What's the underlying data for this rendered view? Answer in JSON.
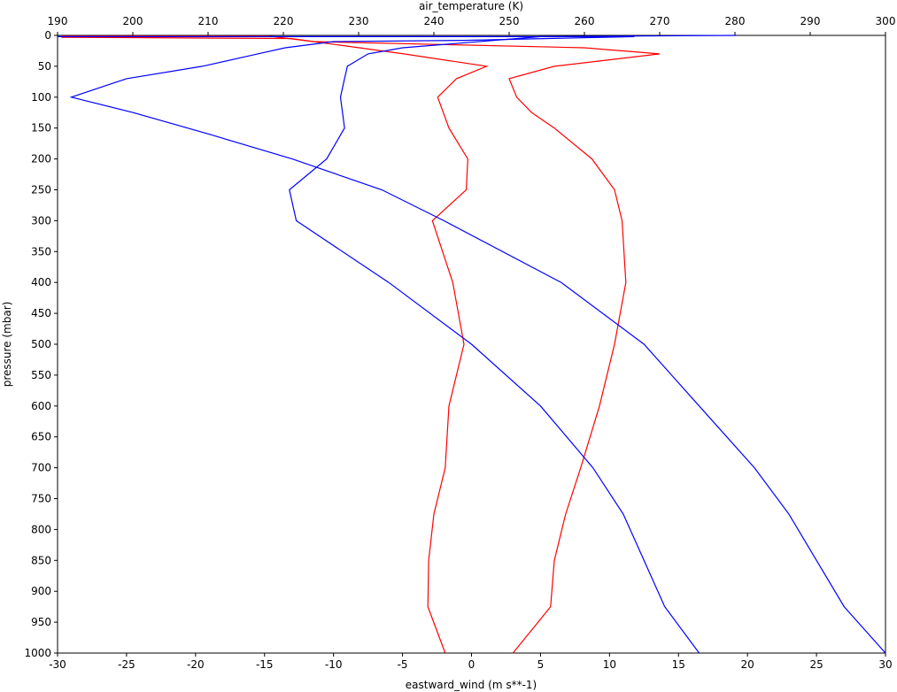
{
  "chart_data": {
    "type": "line",
    "title": "",
    "top_axis": {
      "label": "air_temperature (K)",
      "range": [
        190,
        300
      ],
      "ticks": [
        "190",
        "200",
        "210",
        "220",
        "230",
        "240",
        "250",
        "260",
        "270",
        "280",
        "290",
        "300"
      ]
    },
    "bottom_axis": {
      "label": "eastward_wind (m s**-1)",
      "range": [
        -30,
        30
      ],
      "ticks": [
        "-30",
        "-25",
        "-20",
        "-15",
        "-10",
        "-5",
        "0",
        "5",
        "10",
        "15",
        "20",
        "25",
        "30"
      ]
    },
    "left_axis": {
      "label": "pressure (mbar)",
      "range": [
        0,
        1000
      ],
      "inverted": true,
      "ticks": [
        "0",
        "50",
        "100",
        "150",
        "200",
        "250",
        "300",
        "350",
        "400",
        "450",
        "500",
        "550",
        "600",
        "650",
        "700",
        "750",
        "800",
        "850",
        "900",
        "950",
        "1000"
      ]
    },
    "grid": false,
    "legend": "none",
    "series": [
      {
        "axis": "air_temperature",
        "color": "#ff0000",
        "points": [
          [
            190.5,
            3
          ],
          [
            221,
            5
          ],
          [
            236,
            30
          ],
          [
            247,
            50
          ],
          [
            243,
            70
          ],
          [
            240.5,
            100
          ],
          [
            242,
            150
          ],
          [
            244.5,
            200
          ],
          [
            244.3,
            250
          ],
          [
            239.8,
            300
          ],
          [
            242.5,
            400
          ],
          [
            244,
            500
          ],
          [
            242,
            600
          ],
          [
            241.5,
            700
          ],
          [
            240,
            775
          ],
          [
            239.3,
            850
          ],
          [
            239.2,
            925
          ],
          [
            241.5,
            1000
          ]
        ]
      },
      {
        "axis": "air_temperature",
        "color": "#ff0000",
        "points": [
          [
            190.5,
            1
          ],
          [
            218,
            1
          ],
          [
            224,
            10
          ],
          [
            260,
            20
          ],
          [
            270,
            30
          ],
          [
            256,
            50
          ],
          [
            250,
            70
          ],
          [
            251,
            100
          ],
          [
            253,
            125
          ],
          [
            256,
            150
          ],
          [
            261,
            200
          ],
          [
            264,
            250
          ],
          [
            265,
            300
          ],
          [
            265.5,
            400
          ],
          [
            264,
            500
          ],
          [
            262,
            600
          ],
          [
            259.5,
            700
          ],
          [
            257.5,
            775
          ],
          [
            256,
            850
          ],
          [
            255.5,
            925
          ],
          [
            250.5,
            1000
          ]
        ]
      },
      {
        "axis": "eastward_wind",
        "color": "#0000ff",
        "points": [
          [
            -30,
            2
          ],
          [
            11.8,
            2
          ],
          [
            -0.5,
            8
          ],
          [
            -10,
            10
          ],
          [
            -13.5,
            20
          ],
          [
            -15.5,
            30
          ],
          [
            -19.5,
            50
          ],
          [
            -25,
            70
          ],
          [
            -29,
            100
          ],
          [
            -24.5,
            125
          ],
          [
            -19,
            160
          ],
          [
            -13,
            200
          ],
          [
            -6.5,
            250
          ],
          [
            -2,
            300
          ],
          [
            6.5,
            400
          ],
          [
            12.5,
            500
          ],
          [
            16.5,
            600
          ],
          [
            20.5,
            700
          ],
          [
            23,
            775
          ],
          [
            25,
            850
          ],
          [
            27,
            925
          ],
          [
            30,
            1000
          ]
        ]
      },
      {
        "axis": "eastward_wind",
        "color": "#0000ff",
        "points": [
          [
            19.2,
            0
          ],
          [
            5,
            2
          ],
          [
            -5,
            20
          ],
          [
            -7.5,
            30
          ],
          [
            -9,
            50
          ],
          [
            -9.2,
            70
          ],
          [
            -9.5,
            100
          ],
          [
            -9.2,
            150
          ],
          [
            -10.5,
            200
          ],
          [
            -13.2,
            250
          ],
          [
            -12.7,
            300
          ],
          [
            -6,
            400
          ],
          [
            0,
            500
          ],
          [
            5,
            600
          ],
          [
            8.8,
            700
          ],
          [
            11,
            775
          ],
          [
            12.5,
            850
          ],
          [
            14,
            925
          ],
          [
            16.5,
            1000
          ]
        ]
      }
    ]
  }
}
